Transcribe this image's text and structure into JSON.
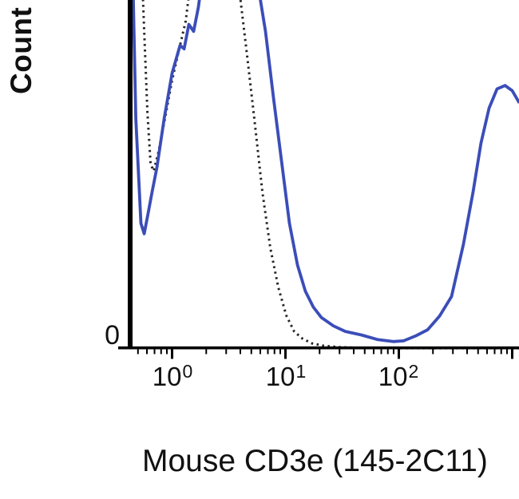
{
  "figure": {
    "y_axis_label": "Count",
    "y_zero_label": "0",
    "x_axis_title": "Mouse CD3e (145-2C11)",
    "colors": {
      "axis": "#000000",
      "solid_series": "#3b4db8",
      "dotted_series": "#262626",
      "background": "#ffffff"
    }
  },
  "chart_data": {
    "type": "line",
    "title": "",
    "xlabel": "Mouse CD3e (145-2C11)",
    "ylabel": "Count",
    "x_scale": "log10",
    "x_range_log10": [
      -0.37,
      3.06
    ],
    "y_range_percent": [
      0,
      100
    ],
    "grid": "off",
    "legend": "none",
    "note": "Flow cytometry overlay histogram. y values are percent of visible axis height; values above 100 are off-scale (central peak clipped at plot top).",
    "x_major_ticks": [
      {
        "log10": 0,
        "base": "10",
        "exp": "0"
      },
      {
        "log10": 1,
        "base": "10",
        "exp": "1"
      },
      {
        "log10": 2,
        "base": "10",
        "exp": "2"
      },
      {
        "log10": 3,
        "base": "",
        "exp": ""
      }
    ],
    "x_minor_ticks_log10": [
      -0.301,
      -0.222,
      -0.155,
      -0.097,
      -0.046,
      0.301,
      0.477,
      0.602,
      0.699,
      0.778,
      0.845,
      0.903,
      0.954,
      1.301,
      1.477,
      1.602,
      1.699,
      1.778,
      1.845,
      1.903,
      1.954,
      2.301,
      2.477,
      2.602,
      2.699,
      2.778,
      2.845,
      2.903,
      2.954
    ],
    "series": [
      {
        "name": "isotype-control-dotted",
        "style": "dotted",
        "color": "#262626",
        "points": [
          [
            -0.262,
            105
          ],
          [
            -0.246,
            91
          ],
          [
            -0.218,
            68
          ],
          [
            -0.19,
            53
          ],
          [
            -0.162,
            51
          ],
          [
            -0.12,
            56.5
          ],
          [
            -0.063,
            66
          ],
          [
            0.0,
            77
          ],
          [
            0.063,
            86
          ],
          [
            0.12,
            94
          ],
          [
            0.162,
            105
          ],
          [
            0.585,
            105
          ],
          [
            0.655,
            86
          ],
          [
            0.725,
            66
          ],
          [
            0.796,
            45
          ],
          [
            0.866,
            29
          ],
          [
            0.937,
            17.6
          ],
          [
            1.007,
            9.6
          ],
          [
            1.077,
            5
          ],
          [
            1.148,
            3
          ],
          [
            1.232,
            1.6
          ],
          [
            1.338,
            0.9
          ],
          [
            1.479,
            0.5
          ],
          [
            1.655,
            0.3
          ],
          [
            2.0,
            0.2
          ],
          [
            2.5,
            0.2
          ],
          [
            3.063,
            0.2
          ]
        ]
      },
      {
        "name": "stained-solid-blue",
        "style": "solid",
        "color": "#3b4db8",
        "points": [
          [
            -0.345,
            105
          ],
          [
            -0.32,
            66
          ],
          [
            -0.275,
            36
          ],
          [
            -0.246,
            33
          ],
          [
            -0.211,
            39
          ],
          [
            -0.176,
            45
          ],
          [
            -0.134,
            52
          ],
          [
            -0.07,
            66
          ],
          [
            0.0,
            79
          ],
          [
            0.07,
            87
          ],
          [
            0.106,
            86
          ],
          [
            0.148,
            93
          ],
          [
            0.19,
            91
          ],
          [
            0.232,
            98
          ],
          [
            0.261,
            105
          ],
          [
            0.754,
            105
          ],
          [
            0.824,
            91
          ],
          [
            0.894,
            72
          ],
          [
            0.965,
            54
          ],
          [
            1.035,
            36
          ],
          [
            1.106,
            24
          ],
          [
            1.176,
            16.5
          ],
          [
            1.246,
            12
          ],
          [
            1.317,
            9
          ],
          [
            1.423,
            6.6
          ],
          [
            1.528,
            5
          ],
          [
            1.669,
            4
          ],
          [
            1.81,
            2.7
          ],
          [
            1.951,
            2.1
          ],
          [
            2.042,
            2.3
          ],
          [
            2.148,
            3.7
          ],
          [
            2.254,
            5.5
          ],
          [
            2.359,
            9.4
          ],
          [
            2.465,
            15
          ],
          [
            2.57,
            30
          ],
          [
            2.655,
            45
          ],
          [
            2.725,
            59
          ],
          [
            2.796,
            69
          ],
          [
            2.866,
            74.5
          ],
          [
            2.937,
            75.5
          ],
          [
            3.0,
            74
          ],
          [
            3.063,
            70.5
          ]
        ]
      }
    ]
  }
}
